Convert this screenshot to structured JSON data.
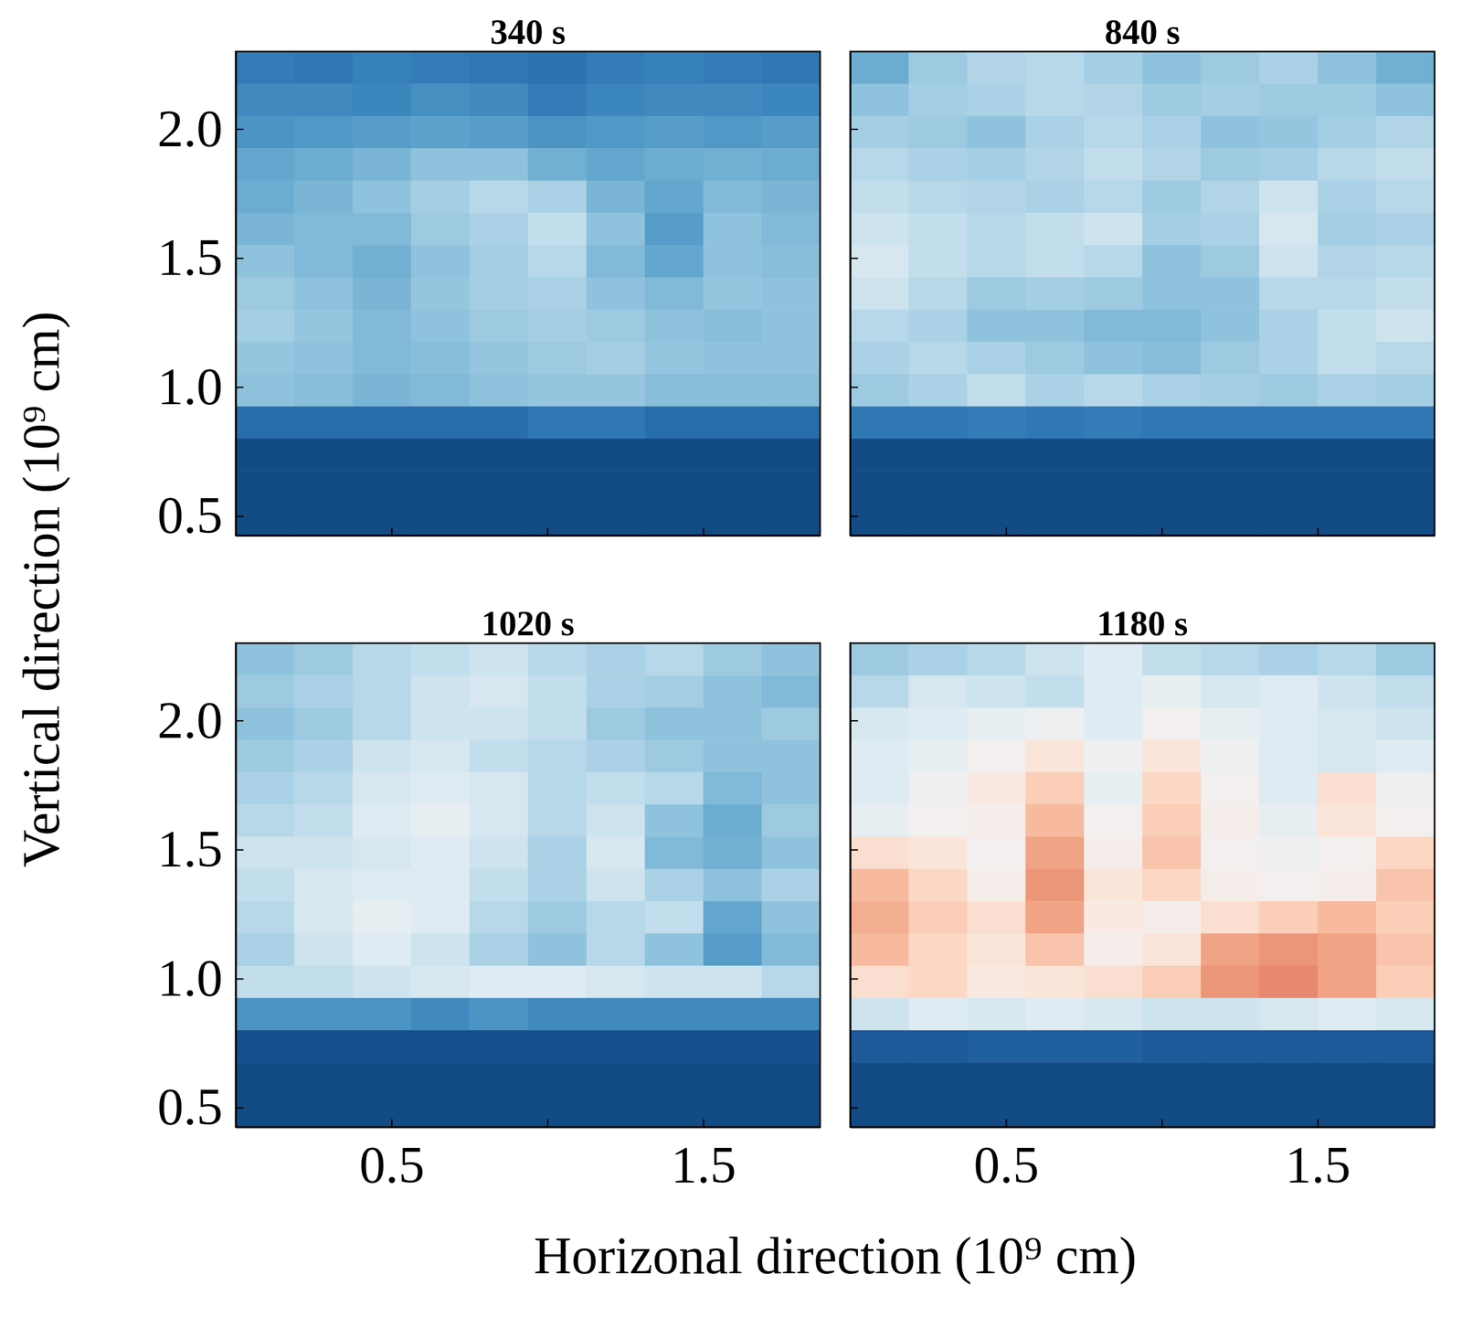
{
  "chart_data": [
    {
      "type": "heatmap",
      "title": "340 s",
      "tick_labels": "y",
      "xlim": [
        0,
        1.875
      ],
      "ylim": [
        0.425,
        2.3
      ],
      "xticks": [
        0.5,
        {
          "value": 1,
          "label": null
        },
        1.5
      ],
      "yticks": [
        0.5,
        {
          "value": 1,
          "label": "1.0"
        },
        1.5,
        {
          "value": 2,
          "label": "2.0"
        }
      ],
      "color_range": [
        0,
        1
      ],
      "x_edges": [
        0,
        0.1875,
        0.375,
        0.5625,
        0.75,
        0.9375,
        1.125,
        1.3125,
        1.5,
        1.6875,
        1.875
      ],
      "y_edges": [
        2.3,
        2.175,
        2.05,
        1.925,
        1.8,
        1.675,
        1.55,
        1.425,
        1.3,
        1.175,
        1.05,
        0.925,
        0.8,
        0.675,
        0.55,
        0.425
      ],
      "values": [
        [
          0.15,
          0.14,
          0.16,
          0.15,
          0.14,
          0.13,
          0.15,
          0.16,
          0.15,
          0.14
        ],
        [
          0.18,
          0.18,
          0.17,
          0.19,
          0.18,
          0.15,
          0.17,
          0.18,
          0.18,
          0.17
        ],
        [
          0.2,
          0.21,
          0.22,
          0.23,
          0.22,
          0.2,
          0.21,
          0.22,
          0.21,
          0.22
        ],
        [
          0.24,
          0.25,
          0.27,
          0.3,
          0.3,
          0.26,
          0.24,
          0.25,
          0.26,
          0.25
        ],
        [
          0.25,
          0.27,
          0.3,
          0.33,
          0.36,
          0.34,
          0.27,
          0.24,
          0.28,
          0.27
        ],
        [
          0.27,
          0.28,
          0.28,
          0.32,
          0.34,
          0.38,
          0.3,
          0.22,
          0.3,
          0.28
        ],
        [
          0.3,
          0.28,
          0.26,
          0.3,
          0.33,
          0.36,
          0.28,
          0.24,
          0.3,
          0.29
        ],
        [
          0.32,
          0.3,
          0.27,
          0.31,
          0.33,
          0.34,
          0.3,
          0.28,
          0.31,
          0.3
        ],
        [
          0.33,
          0.31,
          0.28,
          0.3,
          0.32,
          0.33,
          0.32,
          0.3,
          0.29,
          0.3
        ],
        [
          0.31,
          0.3,
          0.28,
          0.29,
          0.31,
          0.32,
          0.33,
          0.31,
          0.3,
          0.3
        ],
        [
          0.3,
          0.29,
          0.27,
          0.28,
          0.3,
          0.31,
          0.31,
          0.29,
          0.29,
          0.29
        ],
        [
          0.12,
          0.12,
          0.12,
          0.12,
          0.12,
          0.14,
          0.14,
          0.12,
          0.12,
          0.12
        ],
        [
          0.05,
          0.05,
          0.05,
          0.05,
          0.05,
          0.05,
          0.05,
          0.05,
          0.05,
          0.05
        ],
        [
          0.05,
          0.05,
          0.05,
          0.05,
          0.05,
          0.05,
          0.05,
          0.05,
          0.05,
          0.05
        ],
        [
          0.05,
          0.05,
          0.05,
          0.05,
          0.05,
          0.05,
          0.05,
          0.05,
          0.05,
          0.05
        ]
      ]
    },
    {
      "type": "heatmap",
      "title": "840 s",
      "tick_labels": false,
      "xlim": [
        0,
        1.875
      ],
      "ylim": [
        0.425,
        2.3
      ],
      "xticks": [
        0.5,
        {
          "value": 1,
          "label": null
        },
        1.5
      ],
      "yticks": [
        0.5,
        {
          "value": 1,
          "label": "1.0"
        },
        1.5,
        {
          "value": 2,
          "label": "2.0"
        }
      ],
      "color_range": [
        0,
        1
      ],
      "x_edges": [
        0,
        0.1875,
        0.375,
        0.5625,
        0.75,
        0.9375,
        1.125,
        1.3125,
        1.5,
        1.6875,
        1.875
      ],
      "y_edges": [
        2.3,
        2.175,
        2.05,
        1.925,
        1.8,
        1.675,
        1.55,
        1.425,
        1.3,
        1.175,
        1.05,
        0.925,
        0.8,
        0.675,
        0.55,
        0.425
      ],
      "values": [
        [
          0.25,
          0.32,
          0.35,
          0.36,
          0.33,
          0.3,
          0.32,
          0.34,
          0.3,
          0.26
        ],
        [
          0.3,
          0.33,
          0.34,
          0.36,
          0.35,
          0.32,
          0.33,
          0.32,
          0.32,
          0.3
        ],
        [
          0.33,
          0.32,
          0.3,
          0.34,
          0.36,
          0.34,
          0.3,
          0.31,
          0.33,
          0.35
        ],
        [
          0.36,
          0.34,
          0.33,
          0.35,
          0.38,
          0.35,
          0.32,
          0.33,
          0.36,
          0.38
        ],
        [
          0.38,
          0.36,
          0.35,
          0.34,
          0.36,
          0.32,
          0.35,
          0.4,
          0.34,
          0.36
        ],
        [
          0.4,
          0.38,
          0.36,
          0.38,
          0.4,
          0.33,
          0.34,
          0.42,
          0.33,
          0.34
        ],
        [
          0.42,
          0.38,
          0.36,
          0.38,
          0.36,
          0.3,
          0.32,
          0.4,
          0.35,
          0.36
        ],
        [
          0.4,
          0.36,
          0.32,
          0.33,
          0.32,
          0.3,
          0.3,
          0.36,
          0.36,
          0.38
        ],
        [
          0.36,
          0.34,
          0.3,
          0.3,
          0.28,
          0.28,
          0.3,
          0.34,
          0.38,
          0.4
        ],
        [
          0.34,
          0.36,
          0.34,
          0.32,
          0.3,
          0.29,
          0.32,
          0.34,
          0.38,
          0.36
        ],
        [
          0.32,
          0.34,
          0.38,
          0.34,
          0.36,
          0.34,
          0.33,
          0.32,
          0.34,
          0.33
        ],
        [
          0.14,
          0.14,
          0.15,
          0.14,
          0.15,
          0.14,
          0.14,
          0.14,
          0.14,
          0.14
        ],
        [
          0.05,
          0.05,
          0.05,
          0.05,
          0.05,
          0.05,
          0.05,
          0.05,
          0.05,
          0.05
        ],
        [
          0.05,
          0.05,
          0.05,
          0.05,
          0.05,
          0.05,
          0.05,
          0.05,
          0.05,
          0.05
        ],
        [
          0.05,
          0.05,
          0.05,
          0.05,
          0.05,
          0.05,
          0.05,
          0.05,
          0.05,
          0.05
        ]
      ]
    },
    {
      "type": "heatmap",
      "title": "1020 s",
      "xlim": [
        0,
        1.875
      ],
      "ylim": [
        0.425,
        2.3
      ],
      "xticks": [
        0.5,
        {
          "value": 1,
          "label": null
        },
        1.5
      ],
      "yticks": [
        0.5,
        {
          "value": 1,
          "label": "1.0"
        },
        1.5,
        {
          "value": 2,
          "label": "2.0"
        }
      ],
      "color_range": [
        0,
        1
      ],
      "x_edges": [
        0,
        0.1875,
        0.375,
        0.5625,
        0.75,
        0.9375,
        1.125,
        1.3125,
        1.5,
        1.6875,
        1.875
      ],
      "y_edges": [
        2.3,
        2.175,
        2.05,
        1.925,
        1.8,
        1.675,
        1.55,
        1.425,
        1.3,
        1.175,
        1.05,
        0.925,
        0.8,
        0.675,
        0.55,
        0.425
      ],
      "values": [
        [
          0.3,
          0.32,
          0.36,
          0.38,
          0.4,
          0.36,
          0.34,
          0.36,
          0.32,
          0.3
        ],
        [
          0.32,
          0.34,
          0.36,
          0.4,
          0.42,
          0.38,
          0.34,
          0.33,
          0.3,
          0.28
        ],
        [
          0.3,
          0.32,
          0.36,
          0.4,
          0.4,
          0.38,
          0.32,
          0.3,
          0.3,
          0.32
        ],
        [
          0.32,
          0.34,
          0.4,
          0.42,
          0.38,
          0.36,
          0.34,
          0.32,
          0.3,
          0.3
        ],
        [
          0.34,
          0.36,
          0.42,
          0.44,
          0.42,
          0.36,
          0.38,
          0.36,
          0.28,
          0.3
        ],
        [
          0.36,
          0.38,
          0.44,
          0.46,
          0.42,
          0.36,
          0.4,
          0.3,
          0.25,
          0.32
        ],
        [
          0.4,
          0.4,
          0.42,
          0.44,
          0.4,
          0.34,
          0.42,
          0.28,
          0.26,
          0.3
        ],
        [
          0.38,
          0.42,
          0.44,
          0.44,
          0.38,
          0.34,
          0.4,
          0.34,
          0.3,
          0.34
        ],
        [
          0.36,
          0.42,
          0.46,
          0.44,
          0.36,
          0.32,
          0.36,
          0.38,
          0.24,
          0.3
        ],
        [
          0.34,
          0.4,
          0.44,
          0.4,
          0.34,
          0.3,
          0.36,
          0.3,
          0.22,
          0.28
        ],
        [
          0.38,
          0.38,
          0.4,
          0.42,
          0.44,
          0.44,
          0.42,
          0.4,
          0.4,
          0.36
        ],
        [
          0.2,
          0.2,
          0.2,
          0.18,
          0.2,
          0.18,
          0.18,
          0.18,
          0.18,
          0.18
        ],
        [
          0.06,
          0.06,
          0.06,
          0.06,
          0.06,
          0.06,
          0.06,
          0.06,
          0.06,
          0.06
        ],
        [
          0.05,
          0.05,
          0.05,
          0.05,
          0.05,
          0.05,
          0.05,
          0.05,
          0.05,
          0.05
        ],
        [
          0.05,
          0.05,
          0.05,
          0.05,
          0.05,
          0.05,
          0.05,
          0.05,
          0.05,
          0.05
        ]
      ]
    },
    {
      "type": "heatmap",
      "title": "1180 s",
      "tick_labels": "x",
      "xlim": [
        0,
        1.875
      ],
      "ylim": [
        0.425,
        2.3
      ],
      "xticks": [
        0.5,
        {
          "value": 1,
          "label": null
        },
        1.5
      ],
      "yticks": [
        0.5,
        {
          "value": 1,
          "label": "1.0"
        },
        1.5,
        {
          "value": 2,
          "label": "2.0"
        }
      ],
      "color_range": [
        0,
        1
      ],
      "x_edges": [
        0,
        0.1875,
        0.375,
        0.5625,
        0.75,
        0.9375,
        1.125,
        1.3125,
        1.5,
        1.6875,
        1.875
      ],
      "y_edges": [
        2.3,
        2.175,
        2.05,
        1.925,
        1.8,
        1.675,
        1.55,
        1.425,
        1.3,
        1.175,
        1.05,
        0.925,
        0.8,
        0.675,
        0.55,
        0.425
      ],
      "values": [
        [
          0.32,
          0.34,
          0.36,
          0.4,
          0.44,
          0.38,
          0.36,
          0.34,
          0.36,
          0.32
        ],
        [
          0.36,
          0.42,
          0.4,
          0.38,
          0.44,
          0.46,
          0.42,
          0.44,
          0.4,
          0.38
        ],
        [
          0.42,
          0.44,
          0.46,
          0.48,
          0.44,
          0.5,
          0.46,
          0.44,
          0.42,
          0.4
        ],
        [
          0.44,
          0.46,
          0.5,
          0.56,
          0.48,
          0.56,
          0.48,
          0.44,
          0.42,
          0.44
        ],
        [
          0.44,
          0.48,
          0.54,
          0.62,
          0.46,
          0.6,
          0.5,
          0.44,
          0.58,
          0.48
        ],
        [
          0.46,
          0.5,
          0.52,
          0.66,
          0.5,
          0.62,
          0.52,
          0.46,
          0.56,
          0.5
        ],
        [
          0.58,
          0.56,
          0.5,
          0.7,
          0.52,
          0.64,
          0.5,
          0.48,
          0.5,
          0.6
        ],
        [
          0.66,
          0.6,
          0.52,
          0.72,
          0.56,
          0.6,
          0.52,
          0.5,
          0.52,
          0.64
        ],
        [
          0.68,
          0.62,
          0.58,
          0.7,
          0.54,
          0.52,
          0.58,
          0.62,
          0.66,
          0.62
        ],
        [
          0.66,
          0.6,
          0.56,
          0.64,
          0.52,
          0.56,
          0.7,
          0.72,
          0.7,
          0.64
        ],
        [
          0.58,
          0.6,
          0.54,
          0.56,
          0.58,
          0.62,
          0.72,
          0.74,
          0.7,
          0.62
        ],
        [
          0.4,
          0.44,
          0.42,
          0.44,
          0.42,
          0.4,
          0.4,
          0.42,
          0.44,
          0.42
        ],
        [
          0.08,
          0.08,
          0.09,
          0.09,
          0.09,
          0.08,
          0.08,
          0.08,
          0.08,
          0.08
        ],
        [
          0.05,
          0.05,
          0.05,
          0.05,
          0.05,
          0.05,
          0.05,
          0.05,
          0.05,
          0.05
        ],
        [
          0.05,
          0.05,
          0.05,
          0.05,
          0.05,
          0.05,
          0.05,
          0.05,
          0.05,
          0.05
        ]
      ]
    }
  ],
  "xlabel": "Horizonal direction (10⁹ cm)",
  "ylabel": "Vertical direction (10⁹ cm)"
}
